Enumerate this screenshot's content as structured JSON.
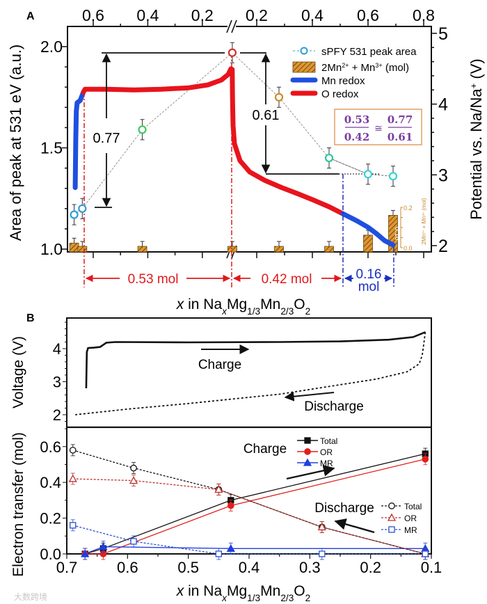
{
  "chart_data": [
    {
      "panel_label": "A",
      "type": "scatter+line+bar",
      "xlabel_parts": [
        "x",
        " in Na",
        "x",
        "Mg",
        "1/3",
        "Mn",
        "2/3",
        "O",
        "2"
      ],
      "top_axis": {
        "charge_ticks": [
          0.6,
          0.4,
          0.2
        ],
        "discharge_ticks": [
          0.2,
          0.4,
          0.6,
          0.8
        ],
        "break_symbol": "//"
      },
      "ylabel_left": "Area of peak at 531 eV (a.u.)",
      "yticks_left": [
        "1.0",
        "1.5",
        "2.0"
      ],
      "ylim_left": [
        1.0,
        2.05
      ],
      "ylabel_right_parts": [
        "Potential vs. Na/Na",
        "+",
        " (V)"
      ],
      "yticks_right": [
        "2",
        "3",
        "4",
        "5"
      ],
      "ylim_right": [
        1.95,
        5.1
      ],
      "peak_area": [
        {
          "branch": "charge",
          "x": 0.67,
          "y": 1.17,
          "err": 0.05,
          "color": "#2e9bd6"
        },
        {
          "branch": "charge",
          "x": 0.64,
          "y": 1.2,
          "err": 0.05,
          "color": "#2e9bd6"
        },
        {
          "branch": "charge",
          "x": 0.42,
          "y": 1.59,
          "err": 0.05,
          "color": "#3cc85a"
        },
        {
          "branch": "charge",
          "x": 0.09,
          "y": 1.97,
          "err": 0.05,
          "color": "#d5302a"
        },
        {
          "branch": "discharge",
          "x": 0.28,
          "y": 1.75,
          "err": 0.05,
          "color": "#d08a2a"
        },
        {
          "branch": "discharge",
          "x": 0.46,
          "y": 1.45,
          "err": 0.05,
          "color": "#2cc79a"
        },
        {
          "branch": "discharge",
          "x": 0.6,
          "y": 1.37,
          "err": 0.05,
          "color": "#35d2d2"
        },
        {
          "branch": "discharge",
          "x": 0.69,
          "y": 1.36,
          "err": 0.05,
          "color": "#35d2d2"
        }
      ],
      "bars": [
        {
          "branch": "charge",
          "x": 0.67,
          "value": 0.02
        },
        {
          "branch": "charge",
          "x": 0.64,
          "value": 0.0
        },
        {
          "branch": "charge",
          "x": 0.42,
          "value": 0.0
        },
        {
          "branch": "charge",
          "x": 0.09,
          "value": 0.0
        },
        {
          "branch": "discharge",
          "x": 0.28,
          "value": 0.0
        },
        {
          "branch": "discharge",
          "x": 0.46,
          "value": 0.0
        },
        {
          "branch": "discharge",
          "x": 0.6,
          "value": 0.06
        },
        {
          "branch": "discharge",
          "x": 0.69,
          "value": 0.16,
          "label": "0.16"
        }
      ],
      "inset_axis": {
        "ticks": [
          "0.0",
          "0.2"
        ],
        "range": [
          0,
          0.2
        ],
        "label_parts": [
          "2Mn",
          "2+",
          " + Mn",
          "3+",
          " (mol)"
        ],
        "color": "#c8892e"
      },
      "curves": [
        {
          "name": "Mn redox",
          "color": "#1f4fe0",
          "branch": "charge",
          "points": [
            [
              0.666,
              2.82
            ],
            [
              0.664,
              3.5
            ],
            [
              0.662,
              3.9
            ],
            [
              0.659,
              4.02
            ],
            [
              0.648,
              4.05
            ],
            [
              0.636,
              4.17
            ]
          ]
        },
        {
          "name": "O redox",
          "color": "#e8141c",
          "branch": "charge",
          "points": [
            [
              0.636,
              4.17
            ],
            [
              0.63,
              4.21
            ],
            [
              0.55,
              4.21
            ],
            [
              0.45,
              4.2
            ],
            [
              0.35,
              4.21
            ],
            [
              0.25,
              4.23
            ],
            [
              0.18,
              4.27
            ],
            [
              0.13,
              4.34
            ],
            [
              0.105,
              4.42
            ],
            [
              0.095,
              4.5
            ]
          ]
        },
        {
          "name": "O redox",
          "color": "#e8141c",
          "branch": "discharge",
          "points": [
            [
              0.112,
              4.49
            ],
            [
              0.113,
              4.1
            ],
            [
              0.115,
              3.7
            ],
            [
              0.12,
              3.44
            ],
            [
              0.14,
              3.2
            ],
            [
              0.175,
              3.04
            ],
            [
              0.23,
              2.92
            ],
            [
              0.29,
              2.82
            ],
            [
              0.35,
              2.73
            ],
            [
              0.4,
              2.65
            ],
            [
              0.46,
              2.55
            ],
            [
              0.51,
              2.45
            ]
          ]
        },
        {
          "name": "Mn redox",
          "color": "#1f4fe0",
          "branch": "discharge",
          "points": [
            [
              0.51,
              2.45
            ],
            [
              0.56,
              2.35
            ],
            [
              0.6,
              2.26
            ],
            [
              0.63,
              2.17
            ],
            [
              0.66,
              2.07
            ],
            [
              0.69,
              2.01
            ]
          ]
        }
      ],
      "legend": [
        {
          "label": "sPFY 531 peak area",
          "marker": "open-circle-dashed",
          "color": "#2e9bd6"
        },
        {
          "label_parts": [
            "2Mn",
            "2+",
            " + Mn",
            "3+",
            " (mol)"
          ],
          "marker": "hatched-bar",
          "color": "#e0962e"
        },
        {
          "label": "Mn redox",
          "marker": "thick-line",
          "color": "#1f4fe0"
        },
        {
          "label": "O redox",
          "marker": "thick-line",
          "color": "#e8141c"
        }
      ],
      "annotations": {
        "delta_left": "0.77",
        "delta_right": "0.61",
        "ratio": {
          "n1": "0.53",
          "d1": "0.42",
          "op": "≅",
          "n2": "0.77",
          "d2": "0.61",
          "color": "#7a3ea0",
          "border": "#e0a060"
        },
        "spans": [
          {
            "label": "0.53 mol",
            "color": "#e0181c"
          },
          {
            "label": "0.42 mol",
            "color": "#e0181c"
          },
          {
            "label": "0.16",
            "label2": "mol",
            "color": "#1a2fc0"
          }
        ]
      }
    },
    {
      "panel_label": "B",
      "type": "line",
      "ylabel": "Voltage (V)",
      "yticks": [
        "2",
        "3",
        "4"
      ],
      "ylim": [
        1.8,
        4.93
      ],
      "xlim": [
        0.7,
        0.1
      ],
      "series": [
        {
          "name": "Charge",
          "style": "solid",
          "points": [
            [
              0.668,
              2.8
            ],
            [
              0.667,
              3.9
            ],
            [
              0.665,
              4.02
            ],
            [
              0.655,
              4.03
            ],
            [
              0.645,
              4.05
            ],
            [
              0.635,
              4.18
            ],
            [
              0.62,
              4.2
            ],
            [
              0.5,
              4.19
            ],
            [
              0.35,
              4.2
            ],
            [
              0.25,
              4.22
            ],
            [
              0.17,
              4.27
            ],
            [
              0.13,
              4.35
            ],
            [
              0.11,
              4.5
            ]
          ]
        },
        {
          "name": "Discharge",
          "style": "dotted",
          "points": [
            [
              0.11,
              4.5
            ],
            [
              0.112,
              4.2
            ],
            [
              0.115,
              3.8
            ],
            [
              0.12,
              3.54
            ],
            [
              0.14,
              3.3
            ],
            [
              0.19,
              3.08
            ],
            [
              0.35,
              2.62
            ],
            [
              0.5,
              2.34
            ],
            [
              0.6,
              2.17
            ],
            [
              0.686,
              2.0
            ]
          ]
        }
      ],
      "labels": {
        "charge": "Charge",
        "discharge": "Discharge"
      }
    },
    {
      "type": "line",
      "ylabel": "Electron transfer (mol)",
      "yticks": [
        "0.0",
        "0.2",
        "0.4",
        "0.6"
      ],
      "ylim": [
        0,
        0.71
      ],
      "xticks": [
        "0.7",
        "0.6",
        "0.5",
        "0.4",
        "0.3",
        "0.2",
        "0.1"
      ],
      "xlim": [
        0.7,
        0.1
      ],
      "xlabel_parts": [
        "x",
        " in Na",
        "x",
        "Mg",
        "1/3",
        "Mn",
        "2/3",
        "O",
        "2"
      ],
      "series": [
        {
          "group": "Charge",
          "name": "Total",
          "color": "#111111",
          "marker": "filled-square",
          "dash": "solid",
          "points": [
            [
              0.67,
              0.0
            ],
            [
              0.64,
              0.03
            ],
            [
              0.43,
              0.3
            ],
            [
              0.11,
              0.56
            ]
          ]
        },
        {
          "group": "Charge",
          "name": "OR",
          "color": "#e0201c",
          "marker": "filled-circle",
          "dash": "solid",
          "points": [
            [
              0.67,
              0.0
            ],
            [
              0.64,
              0.0
            ],
            [
              0.43,
              0.27
            ],
            [
              0.11,
              0.53
            ]
          ]
        },
        {
          "group": "Charge",
          "name": "MR",
          "color": "#1f3fe0",
          "marker": "filled-triangle",
          "dash": "solid",
          "points": [
            [
              0.67,
              0.0
            ],
            [
              0.64,
              0.04
            ],
            [
              0.43,
              0.03
            ],
            [
              0.11,
              0.03
            ]
          ]
        },
        {
          "group": "Discharge",
          "name": "Total",
          "color": "#111111",
          "marker": "open-circle",
          "dash": "dashed",
          "points": [
            [
              0.69,
              0.58
            ],
            [
              0.59,
              0.48
            ],
            [
              0.45,
              0.36
            ],
            [
              0.28,
              0.15
            ],
            [
              0.11,
              0.0
            ]
          ]
        },
        {
          "group": "Discharge",
          "name": "OR",
          "color": "#c0302a",
          "marker": "open-triangle",
          "dash": "dashed",
          "points": [
            [
              0.69,
              0.42
            ],
            [
              0.59,
              0.41
            ],
            [
              0.45,
              0.36
            ],
            [
              0.28,
              0.15
            ],
            [
              0.11,
              0.0
            ]
          ]
        },
        {
          "group": "Discharge",
          "name": "MR",
          "color": "#2a4fd0",
          "marker": "open-square",
          "dash": "dashed",
          "points": [
            [
              0.69,
              0.16
            ],
            [
              0.59,
              0.07
            ],
            [
              0.45,
              0.0
            ],
            [
              0.28,
              0.0
            ],
            [
              0.11,
              0.0
            ]
          ]
        }
      ],
      "legend_titles": {
        "charge": "Charge",
        "discharge": "Discharge"
      },
      "legend_placement": {
        "charge": "top-center",
        "discharge": "center-right"
      }
    }
  ],
  "watermark": "大数跨境"
}
